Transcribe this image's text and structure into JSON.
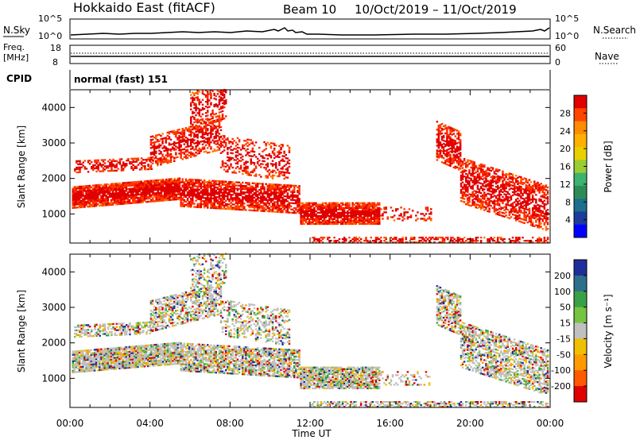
{
  "header": {
    "station": "Hokkaido East (fitACF)",
    "beam": "Beam 10",
    "dates": "10/Oct/2019 – 11/Oct/2019"
  },
  "noise_panel": {
    "left_label": "N.Sky",
    "right_label": "N.Search",
    "left_ticks": [
      "10^5",
      "10^0"
    ],
    "right_ticks": [
      "10^5",
      "10^0"
    ]
  },
  "freq_panel": {
    "left_label_1": "Freq.",
    "left_label_2": "[MHz]",
    "left_ticks": [
      "18",
      "8"
    ],
    "right_label": "Nave",
    "right_ticks": [
      "60",
      "0"
    ]
  },
  "cpid": {
    "label": "CPID",
    "value": "normal (fast) 151"
  },
  "chart_data": [
    {
      "type": "heatmap",
      "title": "Power",
      "ylabel": "Slant Range [km]",
      "xlabel": "Time UT",
      "ylim": [
        180,
        4500
      ],
      "yticks": [
        "1000",
        "2000",
        "3000",
        "4000"
      ],
      "xticks": [
        "00:00",
        "04:00",
        "08:00",
        "12:00",
        "16:00",
        "20:00",
        "00:00"
      ],
      "colorbar_label": "Power [dB]",
      "colorbar_ticks": [
        "28",
        "24",
        "20",
        "16",
        "12",
        "8",
        "4"
      ],
      "colorbar_colors": [
        "#e00000",
        "#ff4500",
        "#ff8c00",
        "#ffb000",
        "#e8d000",
        "#9acd32",
        "#3cb371",
        "#2e8b57",
        "#1e6e8c",
        "#1e3c9b",
        "#0000ff"
      ]
    },
    {
      "type": "heatmap",
      "title": "Velocity",
      "ylabel": "Slant Range [km]",
      "xlabel": "Time UT",
      "ylim": [
        180,
        4500
      ],
      "yticks": [
        "1000",
        "2000",
        "3000",
        "4000"
      ],
      "xticks": [
        "00:00",
        "04:00",
        "08:00",
        "12:00",
        "16:00",
        "20:00",
        "00:00"
      ],
      "colorbar_label": "Velocity [m s⁻¹]",
      "colorbar_ticks": [
        "200",
        "100",
        "50",
        "15",
        "-15",
        "-50",
        "-100",
        "-200"
      ],
      "colorbar_colors": [
        "#1e2f9b",
        "#2e6f8c",
        "#3aa048",
        "#76c441",
        "#c0c0c0",
        "#f0c000",
        "#ff9a00",
        "#ff5a00",
        "#e00000"
      ]
    }
  ]
}
